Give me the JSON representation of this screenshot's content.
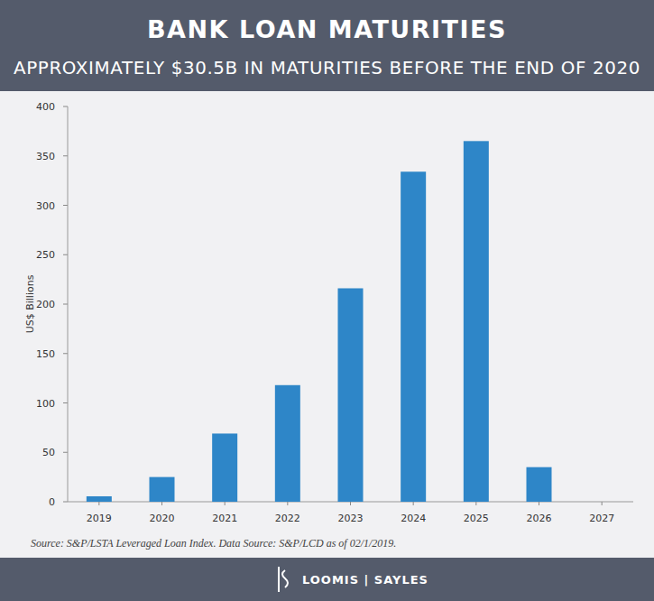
{
  "chart_data": {
    "type": "bar",
    "title": "BANK LOAN MATURITIES",
    "subtitle": "APPROXIMATELY $30.5B IN MATURITIES BEFORE THE END OF 2020",
    "y_label": "US$ Billions",
    "categories": [
      "2019",
      "2020",
      "2021",
      "2022",
      "2023",
      "2024",
      "2025",
      "2026",
      "2027"
    ],
    "values": [
      5.5,
      25,
      69,
      118,
      216,
      334,
      365,
      35,
      0
    ],
    "color": "#2e86c8",
    "ylim": [
      0,
      400
    ],
    "yticks": [
      0,
      50,
      100,
      150,
      200,
      250,
      300,
      350,
      400
    ],
    "grid": false,
    "source": "Source: S&P/LSTA Leveraged Loan Index. Data Source: S&P/LCD as of 02/1/2019.",
    "footer": "LOOMIS | SAYLES"
  }
}
